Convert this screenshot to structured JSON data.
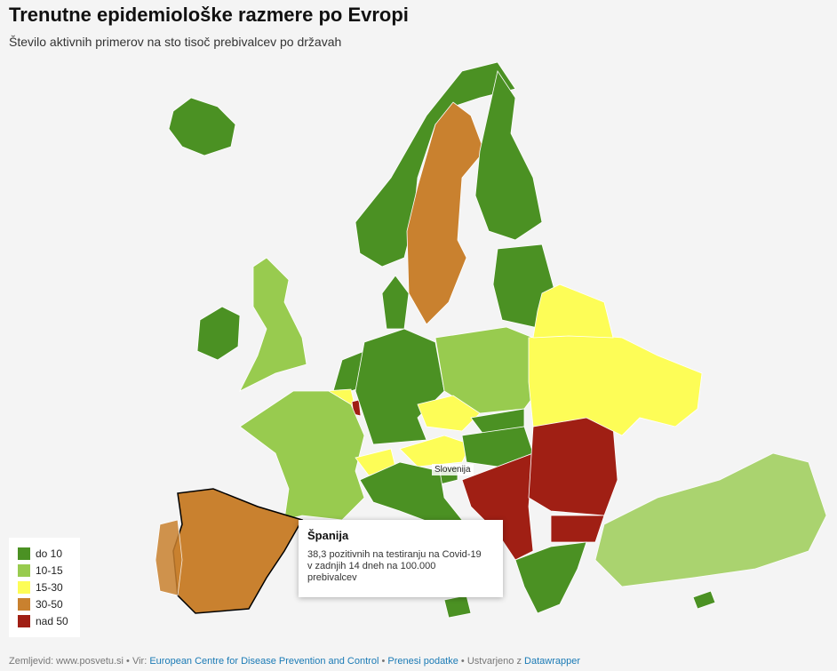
{
  "header": {
    "title": "Trenutne epidemiološke razmere po Evropi",
    "subtitle": "Število aktivnih primerov na sto tisoč prebivalcev po državah"
  },
  "legend": [
    {
      "label": "do 10",
      "color": "#4b9123"
    },
    {
      "label": "10-15",
      "color": "#98cb4f"
    },
    {
      "label": "15-30",
      "color": "#fdfd57"
    },
    {
      "label": "30-50",
      "color": "#c9812f"
    },
    {
      "label": "nad 50",
      "color": "#a01f14"
    }
  ],
  "map_label": "Slovenija",
  "tooltip": {
    "title": "Španija",
    "text": "38,3 pozitivnih na testiranju na Covid-19 v zadnjih 14 dneh na 100.000 prebivalcev"
  },
  "footer": {
    "map": "Zemljevid: www.posvetu.si",
    "source_prefix": "Vir:",
    "source": "European Centre for Disease Prevention and Control",
    "download": "Prenesi podatke",
    "made_prefix": "Ustvarjeno z",
    "made": "Datawrapper"
  }
}
